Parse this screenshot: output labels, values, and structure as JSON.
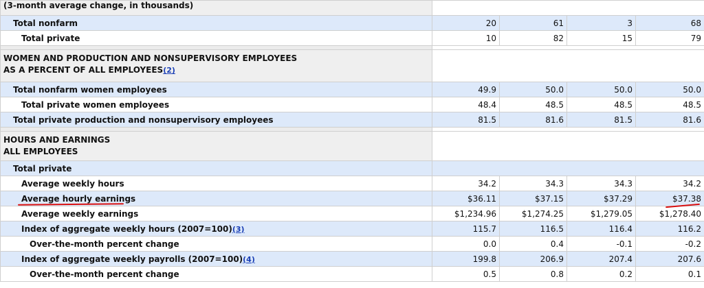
{
  "rows": {
    "r0": {
      "label": "(3-month average change, in thousands)"
    },
    "r1": {
      "label": "Total nonfarm",
      "v": [
        "20",
        "61",
        "3",
        "68"
      ]
    },
    "r2": {
      "label": "Total private",
      "v": [
        "10",
        "82",
        "15",
        "79"
      ]
    },
    "r3": {
      "line1": "WOMEN AND PRODUCTION AND NONSUPERVISORY EMPLOYEES",
      "line2": "AS A PERCENT OF ALL EMPLOYEES",
      "fn": "(2)"
    },
    "r4": {
      "label": "Total nonfarm women employees",
      "v": [
        "49.9",
        "50.0",
        "50.0",
        "50.0"
      ]
    },
    "r5": {
      "label": "Total private women employees",
      "v": [
        "48.4",
        "48.5",
        "48.5",
        "48.5"
      ]
    },
    "r6": {
      "label": "Total private production and nonsupervisory employees",
      "v": [
        "81.5",
        "81.6",
        "81.5",
        "81.6"
      ]
    },
    "r7": {
      "line1": "HOURS AND EARNINGS",
      "line2": "ALL EMPLOYEES"
    },
    "r8": {
      "label": "Total private"
    },
    "r9": {
      "label": "Average weekly hours",
      "v": [
        "34.2",
        "34.3",
        "34.3",
        "34.2"
      ]
    },
    "r10": {
      "label": "Average hourly earnings",
      "v": [
        "$36.11",
        "$37.15",
        "$37.29",
        "$37.38"
      ]
    },
    "r11": {
      "label": "Average weekly earnings",
      "v": [
        "$1,234.96",
        "$1,274.25",
        "$1,279.05",
        "$1,278.40"
      ]
    },
    "r12": {
      "label": "Index of aggregate weekly hours (2007=100)",
      "fn": "(3)",
      "v": [
        "115.7",
        "116.5",
        "116.4",
        "116.2"
      ]
    },
    "r13": {
      "label": "Over-the-month percent change",
      "v": [
        "0.0",
        "0.4",
        "-0.1",
        "-0.2"
      ]
    },
    "r14": {
      "label": "Index of aggregate weekly payrolls (2007=100)",
      "fn": "(4)",
      "v": [
        "199.8",
        "206.9",
        "207.4",
        "207.6"
      ]
    },
    "r15": {
      "label": "Over-the-month percent change",
      "v": [
        "0.5",
        "0.8",
        "0.2",
        "0.1"
      ]
    }
  },
  "colors": {
    "row_shade": "#dde9fa",
    "section_bg": "#efefef",
    "link": "#1a3fb5",
    "annotation": "#d91010"
  }
}
